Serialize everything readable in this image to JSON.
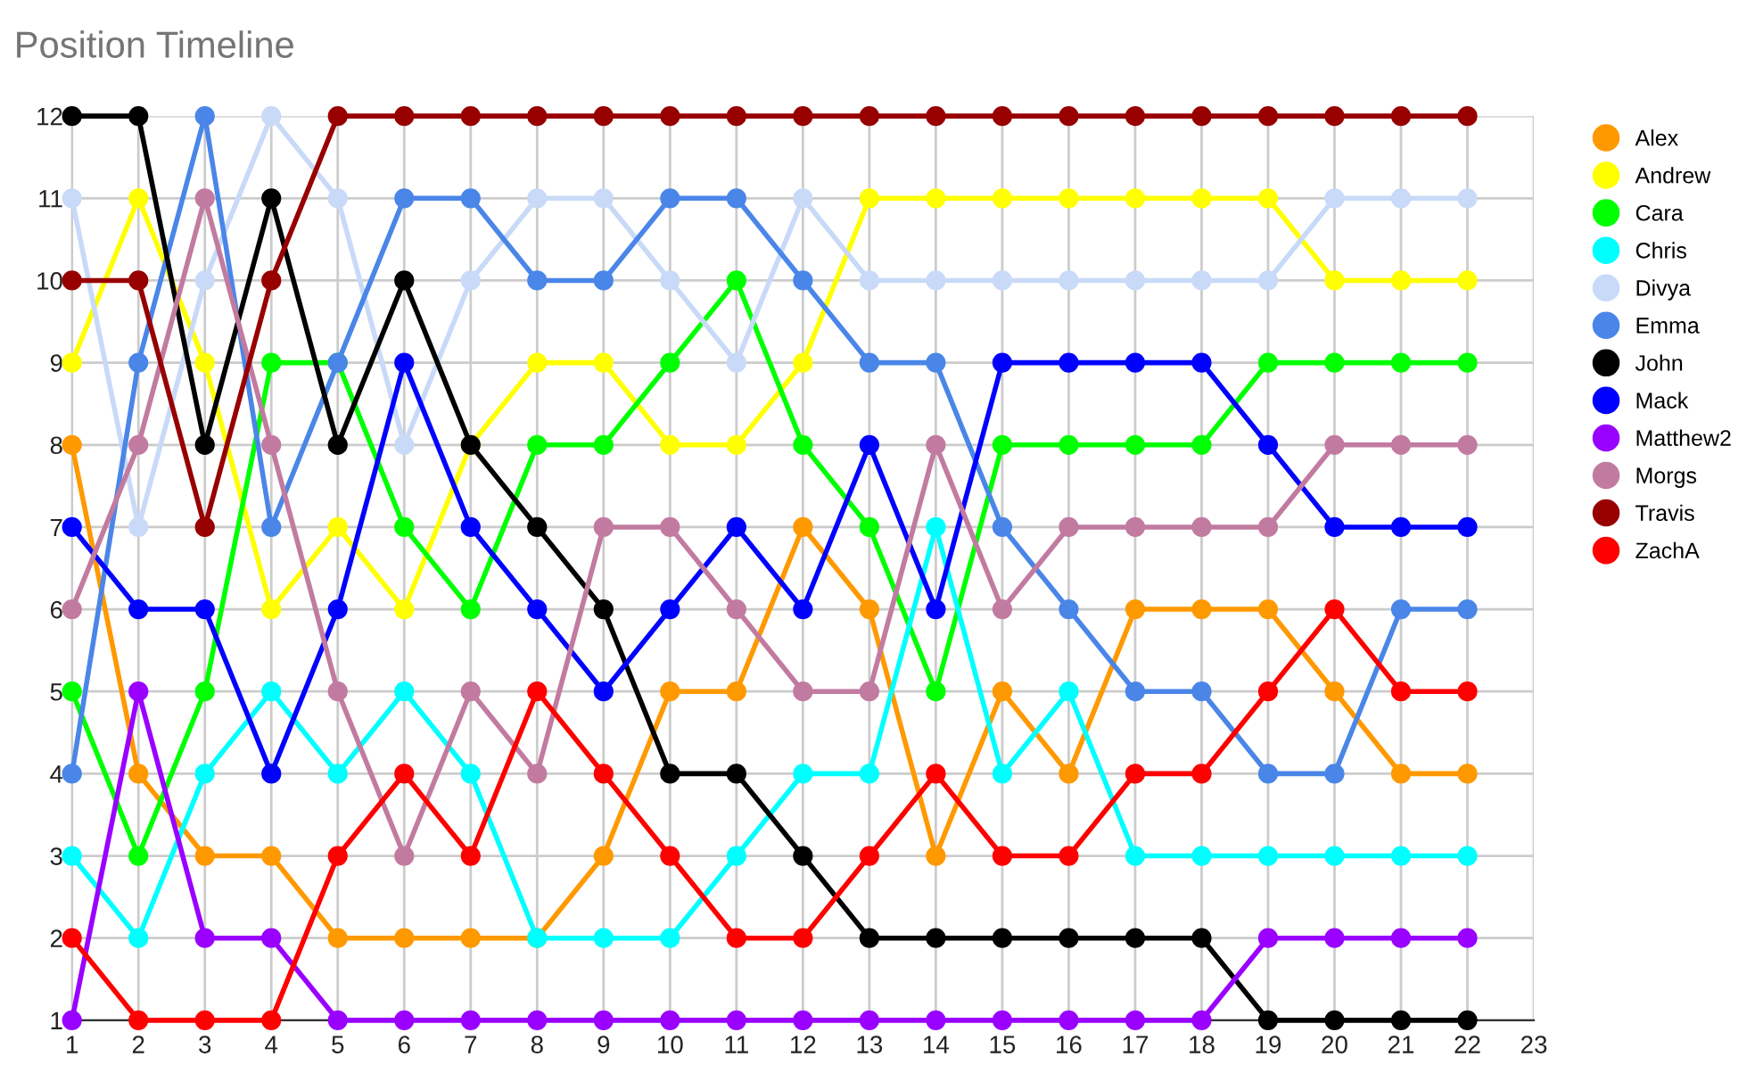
{
  "chart_data": {
    "type": "line",
    "title": "Position Timeline",
    "x": [
      1,
      2,
      3,
      4,
      5,
      6,
      7,
      8,
      9,
      10,
      11,
      12,
      13,
      14,
      15,
      16,
      17,
      18,
      19,
      20,
      21,
      22
    ],
    "series": [
      {
        "name": "Alex",
        "color": "#ff9900",
        "values": [
          8,
          4,
          3,
          3,
          2,
          2,
          2,
          2,
          3,
          5,
          5,
          7,
          6,
          3,
          5,
          4,
          6,
          6,
          6,
          5,
          4,
          4
        ]
      },
      {
        "name": "Andrew",
        "color": "#ffff00",
        "values": [
          9,
          11,
          9,
          6,
          7,
          6,
          8,
          9,
          9,
          8,
          8,
          9,
          11,
          11,
          11,
          11,
          11,
          11,
          11,
          10,
          10,
          10
        ]
      },
      {
        "name": "Cara",
        "color": "#00ff00",
        "values": [
          5,
          3,
          5,
          9,
          9,
          7,
          6,
          8,
          8,
          9,
          10,
          8,
          7,
          5,
          8,
          8,
          8,
          8,
          9,
          9,
          9,
          9
        ]
      },
      {
        "name": "Chris",
        "color": "#00ffff",
        "values": [
          3,
          2,
          4,
          5,
          4,
          5,
          4,
          2,
          2,
          2,
          3,
          4,
          4,
          7,
          4,
          5,
          3,
          3,
          3,
          3,
          3,
          3
        ]
      },
      {
        "name": "Divya",
        "color": "#c9daf8",
        "values": [
          11,
          7,
          10,
          12,
          11,
          8,
          10,
          11,
          11,
          10,
          9,
          11,
          10,
          10,
          10,
          10,
          10,
          10,
          10,
          11,
          11,
          11
        ]
      },
      {
        "name": "Emma",
        "color": "#4a86e8",
        "values": [
          4,
          9,
          12,
          7,
          9,
          11,
          11,
          10,
          10,
          11,
          11,
          10,
          9,
          9,
          7,
          6,
          5,
          5,
          4,
          4,
          6,
          6
        ]
      },
      {
        "name": "John",
        "color": "#000000",
        "values": [
          12,
          12,
          8,
          11,
          8,
          10,
          8,
          7,
          6,
          4,
          4,
          3,
          2,
          2,
          2,
          2,
          2,
          2,
          1,
          1,
          1,
          1
        ]
      },
      {
        "name": "Mack",
        "color": "#0000ff",
        "values": [
          7,
          6,
          6,
          4,
          6,
          9,
          7,
          6,
          5,
          6,
          7,
          6,
          8,
          6,
          9,
          9,
          9,
          9,
          8,
          7,
          7,
          7
        ]
      },
      {
        "name": "Matthew2",
        "color": "#9900ff",
        "values": [
          1,
          5,
          2,
          2,
          1,
          1,
          1,
          1,
          1,
          1,
          1,
          1,
          1,
          1,
          1,
          1,
          1,
          1,
          2,
          2,
          2,
          2
        ]
      },
      {
        "name": "Morgs",
        "color": "#c27ba0",
        "values": [
          6,
          8,
          11,
          8,
          5,
          3,
          5,
          4,
          7,
          7,
          6,
          5,
          5,
          8,
          6,
          7,
          7,
          7,
          7,
          8,
          8,
          8
        ]
      },
      {
        "name": "Travis",
        "color": "#980000",
        "values": [
          10,
          10,
          7,
          10,
          12,
          12,
          12,
          12,
          12,
          12,
          12,
          12,
          12,
          12,
          12,
          12,
          12,
          12,
          12,
          12,
          12,
          12
        ]
      },
      {
        "name": "ZachA",
        "color": "#ff0000",
        "values": [
          2,
          1,
          1,
          1,
          3,
          4,
          3,
          5,
          4,
          3,
          2,
          2,
          3,
          4,
          3,
          3,
          4,
          4,
          5,
          6,
          5,
          5
        ]
      }
    ],
    "xlim": [
      1,
      23
    ],
    "xticks": [
      1,
      2,
      3,
      4,
      5,
      6,
      7,
      8,
      9,
      10,
      11,
      12,
      13,
      14,
      15,
      16,
      17,
      18,
      19,
      20,
      21,
      22,
      23
    ],
    "ylim": [
      1,
      12
    ],
    "yticks": [
      1,
      2,
      3,
      4,
      5,
      6,
      7,
      8,
      9,
      10,
      11,
      12
    ],
    "grid": true,
    "legend": "right",
    "marker": "circle",
    "line_style": "solid"
  }
}
